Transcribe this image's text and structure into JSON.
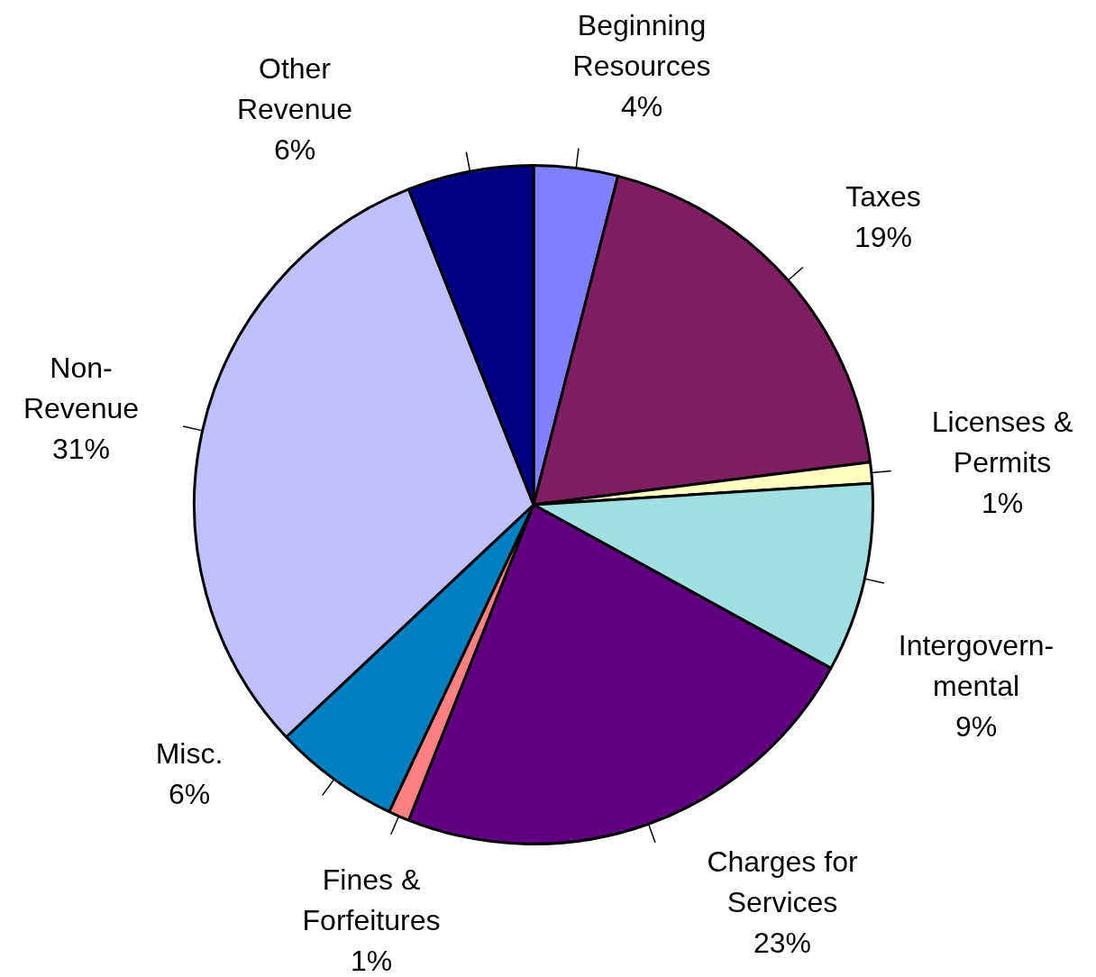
{
  "chart_data": {
    "type": "pie",
    "categories": [
      "Beginning\nResources",
      "Taxes",
      "Licenses &\nPermits",
      "Intergovern-\nmental",
      "Charges for\nServices",
      "Fines &\nForfeitures",
      "Misc.",
      "Non-\nRevenue",
      "Other\nRevenue"
    ],
    "values": [
      4,
      19,
      1,
      9,
      23,
      1,
      6,
      31,
      6
    ],
    "value_labels": [
      "4%",
      "19%",
      "1%",
      "9%",
      "23%",
      "1%",
      "6%",
      "31%",
      "6%"
    ],
    "colors": [
      "#8080ff",
      "#7f1f5f",
      "#ffffc0",
      "#a0e0e0",
      "#600080",
      "#ff8080",
      "#0080c0",
      "#c0c0ff",
      "#000080"
    ],
    "legend": false
  }
}
